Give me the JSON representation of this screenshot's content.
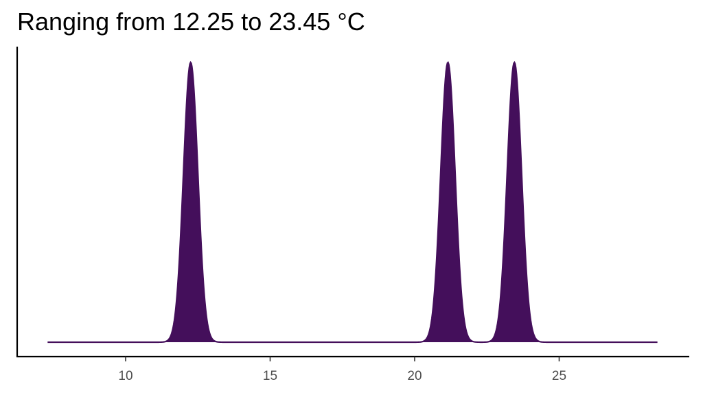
{
  "chart_data": {
    "type": "area",
    "title": "Ranging from 12.25 to 23.45 °C",
    "xlabel": "",
    "ylabel": "",
    "xlim": [
      6.4,
      29.3
    ],
    "ylim": [
      0,
      1.05
    ],
    "x_ticks": [
      10,
      15,
      20,
      25
    ],
    "x_tick_labels": [
      "10",
      "15",
      "20",
      "25"
    ],
    "y_ticks_shown": false,
    "grid": false,
    "legend": "none",
    "x_range_plotted": [
      7.3,
      28.4
    ],
    "series": [
      {
        "peaks": [
          {
            "center": 12.25,
            "height": 1.0,
            "sd": 0.25
          },
          {
            "center": 21.15,
            "height": 1.0,
            "sd": 0.25
          },
          {
            "center": 23.45,
            "height": 1.0,
            "sd": 0.25
          }
        ],
        "color": "#440f5b"
      }
    ],
    "colors": {
      "fill": "#440f5b",
      "line": "#440f5b",
      "axis": "#000000",
      "tick_label": "#4d4d4d"
    }
  }
}
